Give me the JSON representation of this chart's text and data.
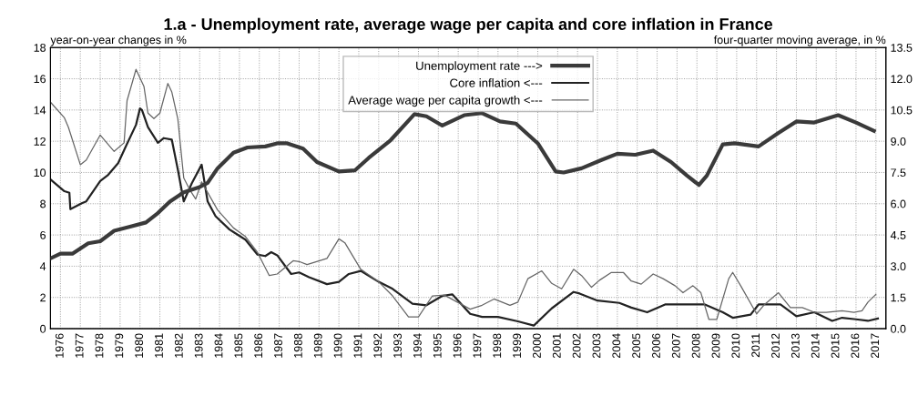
{
  "chart_data": {
    "type": "line",
    "title": "1.a - Unemployment rate, average wage per capita and core inflation in France",
    "ylabel": "year-on-year changes in %",
    "y2label": "four-quarter moving average, in %",
    "xlim": [
      1975.5,
      2017.5
    ],
    "xticks": [
      1976,
      1977,
      1978,
      1979,
      1980,
      1981,
      1982,
      1983,
      1984,
      1985,
      1986,
      1987,
      1988,
      1989,
      1990,
      1991,
      1992,
      1993,
      1994,
      1995,
      1996,
      1997,
      1998,
      1999,
      2000,
      2001,
      2002,
      2003,
      2004,
      2005,
      2006,
      2007,
      2008,
      2009,
      2010,
      2011,
      2012,
      2013,
      2014,
      2015,
      2016,
      2017
    ],
    "ylim": [
      0,
      18
    ],
    "yticks": [
      0,
      2,
      4,
      6,
      8,
      10,
      12,
      14,
      16,
      18
    ],
    "y2lim": [
      0,
      13.5
    ],
    "y2ticks": [
      {
        "value": 0,
        "label": "0.0"
      },
      1.5,
      {
        "value": 3,
        "label": "3.0"
      },
      4.5,
      {
        "value": 6,
        "label": "6.0"
      },
      7.5,
      {
        "value": 9,
        "label": "9.0"
      },
      10.5,
      {
        "value": 12,
        "label": "12.0"
      },
      13.5
    ],
    "grid": true,
    "legend": "top",
    "line_style": "solid",
    "marker": "none",
    "series": [
      {
        "name": "Unemployment rate --->",
        "color": "#3a3a3a",
        "axis": "y2",
        "x": [
          1975.55,
          1976,
          1976.6,
          1977.4,
          1978,
          1978.7,
          1979.5,
          1980.3,
          1980.9,
          1981.5,
          1982.2,
          1983,
          1983.4,
          1983.9,
          1984.7,
          1985.4,
          1986.3,
          1986.9,
          1987.4,
          1988.2,
          1988.9,
          1990,
          1990.8,
          1991.5,
          1992.6,
          1993.8,
          1994.4,
          1995.2,
          1996.3,
          1997.2,
          1998.1,
          1998.9,
          2000,
          2000.9,
          2001.3,
          2002.2,
          2003.2,
          2004,
          2004.9,
          2005.8,
          2006.7,
          2007.5,
          2008.1,
          2008.5,
          2009.3,
          2009.9,
          2011.1,
          2012.1,
          2013,
          2013.9,
          2015.1,
          2016,
          2016.9
        ],
        "values": [
          3.4,
          3.6,
          3.6,
          4.1,
          4.2,
          4.7,
          4.9,
          5.1,
          5.55,
          6.1,
          6.55,
          6.8,
          7.0,
          7.7,
          8.45,
          8.7,
          8.75,
          8.9,
          8.9,
          8.65,
          8.0,
          7.55,
          7.6,
          8.2,
          9.05,
          10.3,
          10.2,
          9.75,
          10.25,
          10.35,
          9.95,
          9.85,
          8.9,
          7.55,
          7.5,
          7.7,
          8.1,
          8.4,
          8.35,
          8.55,
          8.0,
          7.35,
          6.9,
          7.35,
          8.85,
          8.9,
          8.75,
          9.4,
          9.95,
          9.9,
          10.25,
          9.9,
          9.5
        ]
      },
      {
        "name": "Core inflation <---",
        "color": "#222222",
        "x": [
          1975.5,
          1976.2,
          1976.45,
          1976.5,
          1977.1,
          1977.3,
          1978,
          1978.4,
          1978.9,
          1979.3,
          1979.8,
          1980,
          1980.1,
          1980.4,
          1980.9,
          1981.2,
          1981.6,
          1981.9,
          1982.2,
          1982.6,
          1983.1,
          1983.4,
          1983.8,
          1984.5,
          1985.3,
          1985.9,
          1986.3,
          1986.6,
          1986.9,
          1987.6,
          1988,
          1988.5,
          1989.4,
          1990,
          1990.5,
          1991.1,
          1992,
          1992.7,
          1993.7,
          1994.4,
          1995.2,
          1995.7,
          1996.6,
          1997.2,
          1998,
          1999,
          1999.8,
          2000.7,
          2001.8,
          2002.1,
          2003,
          2004.1,
          2004.7,
          2005.5,
          2006.4,
          2007.8,
          2008.4,
          2009.3,
          2009.8,
          2010.7,
          2011.1,
          2011.8,
          2012.2,
          2013,
          2013.9,
          2014.8,
          2015.3,
          2016,
          2016.6,
          2017.1
        ],
        "values": [
          9.55,
          8.8,
          8.7,
          7.65,
          8.05,
          8.15,
          9.45,
          9.85,
          10.6,
          11.7,
          13.05,
          14.1,
          14.0,
          12.9,
          11.9,
          12.2,
          12.1,
          10.2,
          8.15,
          9.3,
          10.5,
          8.15,
          7.2,
          6.35,
          5.7,
          4.75,
          4.65,
          4.9,
          4.7,
          3.5,
          3.6,
          3.3,
          2.85,
          3.0,
          3.5,
          3.7,
          3.0,
          2.55,
          1.6,
          1.5,
          2.1,
          2.2,
          0.95,
          0.75,
          0.75,
          0.47,
          0.2,
          1.3,
          2.35,
          2.25,
          1.8,
          1.65,
          1.35,
          1.05,
          1.55,
          1.55,
          1.55,
          1.05,
          0.7,
          0.9,
          1.55,
          1.55,
          1.55,
          0.8,
          1.05,
          0.5,
          0.7,
          0.6,
          0.5,
          0.65
        ]
      },
      {
        "name": "Average wage per capita growth <---",
        "color": "#666666",
        "x": [
          1975.5,
          1976.2,
          1976.4,
          1977,
          1977.3,
          1978,
          1978.7,
          1979.2,
          1979.35,
          1979.8,
          1980.2,
          1980.4,
          1980.7,
          1981,
          1981.4,
          1981.6,
          1981.9,
          1982.2,
          1982.5,
          1982.8,
          1983.1,
          1983.9,
          1984.7,
          1985.3,
          1985.9,
          1986.5,
          1986.9,
          1987.7,
          1988,
          1988.4,
          1989.4,
          1990,
          1990.3,
          1991.1,
          1992,
          1992.7,
          1993.5,
          1994,
          1994.7,
          1995.3,
          1996.1,
          1996.6,
          1997.2,
          1997.8,
          1998.6,
          1999,
          1999.5,
          2000.2,
          2000.7,
          2001.2,
          2001.8,
          2002.2,
          2002.7,
          2003.1,
          2003.7,
          2004.3,
          2004.7,
          2005.2,
          2005.8,
          2006.3,
          2006.9,
          2007.3,
          2007.8,
          2008.2,
          2008.6,
          2009,
          2009.6,
          2009.8,
          2010.2,
          2011,
          2011.4,
          2012.1,
          2012.7,
          2013.3,
          2013.9,
          2014.5,
          2015.3,
          2015.9,
          2016.3,
          2016.6,
          2017
        ],
        "values": [
          14.5,
          13.5,
          12.9,
          10.5,
          10.8,
          12.4,
          11.35,
          11.9,
          14.6,
          16.6,
          15.5,
          13.8,
          13.45,
          13.8,
          15.7,
          15.15,
          13.45,
          9.65,
          8.9,
          8.3,
          9.4,
          7.6,
          6.45,
          5.9,
          4.9,
          3.4,
          3.5,
          4.35,
          4.3,
          4.1,
          4.5,
          5.75,
          5.5,
          3.8,
          3.0,
          2.1,
          0.75,
          0.75,
          2.1,
          2.15,
          1.6,
          1.25,
          1.5,
          1.9,
          1.5,
          1.7,
          3.2,
          3.7,
          2.9,
          2.55,
          3.8,
          3.4,
          2.65,
          3.1,
          3.6,
          3.6,
          3.05,
          2.85,
          3.5,
          3.2,
          2.75,
          2.3,
          2.75,
          2.3,
          0.6,
          0.6,
          3.2,
          3.6,
          2.75,
          0.95,
          1.55,
          2.3,
          1.35,
          1.35,
          1.05,
          1.05,
          1.15,
          1.05,
          1.15,
          1.7,
          2.2
        ]
      }
    ]
  }
}
